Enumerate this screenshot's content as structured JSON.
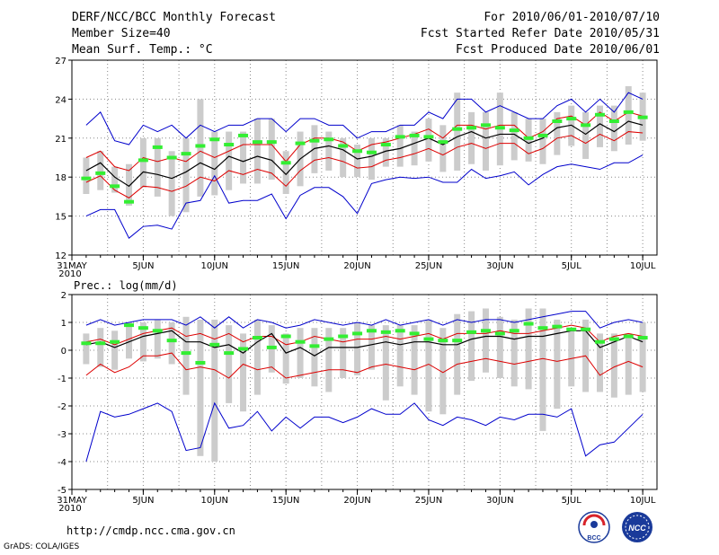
{
  "header": {
    "title": "DERF/NCC/BCC Monthly Forecast",
    "member_size": "Member Size=40",
    "variable": "Mean Surf. Temp.: °C",
    "period": "For 2010/06/01-2010/07/10",
    "started": "Fcst Started Refer Date 2010/05/31",
    "produced": "Fcst Produced Date 2010/06/01"
  },
  "footer": {
    "url": "http://cmdp.ncc.cma.gov.cn",
    "credit": "GrADS: COLA/IGES",
    "logo_left_text": "BCC",
    "logo_right_text": "NCC"
  },
  "colors": {
    "box": "#cccccc",
    "obs": "#33ee33",
    "mean": "#000000",
    "spread": "#dd0000",
    "range": "#0000cc",
    "grid": "#888888"
  },
  "chart_data": [
    {
      "type": "line",
      "title": "Mean Surf. Temp.: °C",
      "ylim": [
        12,
        27
      ],
      "yticks": [
        "12",
        "15",
        "18",
        "21",
        "24",
        "27"
      ],
      "xticks": [
        "31MAY",
        "5JUN",
        "10JUN",
        "15JUN",
        "20JUN",
        "25JUN",
        "30JUN",
        "5JUL",
        "10JUL"
      ],
      "xtick_days": [
        0,
        5,
        10,
        15,
        20,
        25,
        30,
        35,
        40
      ],
      "xlabel_year": "2010",
      "days": [
        1,
        2,
        3,
        4,
        5,
        6,
        7,
        8,
        9,
        10,
        11,
        12,
        13,
        14,
        15,
        16,
        17,
        18,
        19,
        20,
        21,
        22,
        23,
        24,
        25,
        26,
        27,
        28,
        29,
        30,
        31,
        32,
        33,
        34,
        35,
        36,
        37,
        38,
        39,
        40
      ],
      "series": [
        {
          "name": "ensemble_max",
          "values": [
            22.0,
            23.0,
            20.8,
            20.5,
            22.0,
            21.5,
            22.0,
            21.0,
            22.0,
            21.5,
            22.0,
            22.0,
            22.5,
            22.5,
            21.5,
            22.5,
            22.5,
            22.0,
            22.0,
            21.0,
            21.5,
            21.5,
            22.0,
            22.0,
            23.0,
            22.5,
            24.0,
            24.0,
            23.0,
            23.5,
            23.0,
            22.5,
            22.5,
            23.5,
            24.0,
            23.0,
            24.0,
            23.0,
            24.5,
            24.0
          ]
        },
        {
          "name": "upper_spread",
          "values": [
            19.5,
            20.0,
            18.8,
            18.5,
            19.5,
            19.2,
            19.5,
            19.2,
            20.0,
            19.5,
            20.0,
            20.5,
            20.5,
            20.5,
            19.2,
            20.5,
            21.0,
            21.0,
            20.7,
            20.0,
            20.5,
            20.7,
            21.0,
            21.3,
            21.7,
            21.0,
            22.0,
            22.0,
            21.7,
            22.0,
            22.0,
            21.0,
            21.5,
            22.5,
            22.7,
            22.0,
            23.0,
            22.3,
            23.0,
            22.7
          ]
        },
        {
          "name": "ensemble_mean",
          "values": [
            18.5,
            19.1,
            18.0,
            17.3,
            18.4,
            18.2,
            17.9,
            18.4,
            19.1,
            18.6,
            19.6,
            19.2,
            19.6,
            19.3,
            18.2,
            19.4,
            20.2,
            20.4,
            20.1,
            19.4,
            19.6,
            20.0,
            20.2,
            20.6,
            21.0,
            20.5,
            21.1,
            21.5,
            21.0,
            21.3,
            21.3,
            20.6,
            21.0,
            21.8,
            22.0,
            21.3,
            22.1,
            21.5,
            22.3,
            22.0
          ]
        },
        {
          "name": "lower_spread",
          "values": [
            17.6,
            18.1,
            17.0,
            16.4,
            17.3,
            17.2,
            16.9,
            17.3,
            18.0,
            17.7,
            18.5,
            18.2,
            18.6,
            18.3,
            17.3,
            18.5,
            19.3,
            19.5,
            19.2,
            18.7,
            18.8,
            19.3,
            19.5,
            19.8,
            20.2,
            19.7,
            20.3,
            20.6,
            20.2,
            20.6,
            20.6,
            19.8,
            20.2,
            21.0,
            21.2,
            20.6,
            21.3,
            20.8,
            21.5,
            21.4
          ]
        },
        {
          "name": "ensemble_min",
          "values": [
            15.0,
            15.5,
            15.5,
            13.3,
            14.2,
            14.3,
            14.0,
            16.0,
            16.2,
            18.1,
            16.0,
            16.2,
            16.2,
            16.7,
            14.8,
            16.6,
            17.2,
            17.2,
            16.5,
            15.2,
            17.5,
            17.8,
            18.0,
            17.9,
            18.0,
            17.6,
            17.6,
            18.6,
            17.9,
            18.1,
            18.4,
            17.4,
            18.2,
            18.8,
            19.0,
            18.8,
            18.6,
            19.1,
            19.1,
            19.7
          ]
        },
        {
          "name": "box_low",
          "values": [
            16.7,
            17.0,
            16.8,
            15.8,
            17.2,
            16.5,
            15.0,
            15.3,
            16.5,
            16.6,
            17.0,
            17.5,
            17.5,
            17.8,
            16.7,
            17.3,
            18.3,
            18.5,
            18.0,
            18.0,
            17.8,
            18.8,
            18.8,
            18.9,
            19.2,
            18.4,
            18.5,
            19.0,
            18.5,
            18.9,
            19.3,
            19.2,
            19.0,
            19.7,
            20.4,
            19.4,
            20.3,
            20.0,
            20.5,
            20.8
          ]
        },
        {
          "name": "box_high",
          "values": [
            19.5,
            20.0,
            18.8,
            19.0,
            21.0,
            21.0,
            20.0,
            21.0,
            24.0,
            21.5,
            21.5,
            21.5,
            22.5,
            22.5,
            20.0,
            21.5,
            22.0,
            21.5,
            21.0,
            20.5,
            21.0,
            21.0,
            22.0,
            21.5,
            22.5,
            22.0,
            24.5,
            23.0,
            23.0,
            24.5,
            23.0,
            22.5,
            22.5,
            23.0,
            23.5,
            23.0,
            23.5,
            23.5,
            25.0,
            24.5
          ]
        },
        {
          "name": "observed",
          "values": [
            17.9,
            18.3,
            17.3,
            16.1,
            19.3,
            20.3,
            19.5,
            19.8,
            20.4,
            20.9,
            20.5,
            21.2,
            20.7,
            20.7,
            19.1,
            20.6,
            20.8,
            20.9,
            20.4,
            20.0,
            19.9,
            20.5,
            21.1,
            21.2,
            21.1,
            20.7,
            21.7,
            21.8,
            22.0,
            21.8,
            21.6,
            21.0,
            21.2,
            22.3,
            22.5,
            22.0,
            22.8,
            22.3,
            23.0,
            22.6
          ]
        }
      ]
    },
    {
      "type": "line",
      "title": "Prec.: log(mm/d)",
      "ylim": [
        -5,
        2
      ],
      "yticks": [
        "-5",
        "-4",
        "-3",
        "-2",
        "-1",
        "0",
        "1",
        "2"
      ],
      "xticks": [
        "31MAY",
        "5JUN",
        "10JUN",
        "15JUN",
        "20JUN",
        "25JUN",
        "30JUN",
        "5JUL",
        "10JUL"
      ],
      "xtick_days": [
        0,
        5,
        10,
        15,
        20,
        25,
        30,
        35,
        40
      ],
      "xlabel_year": "2010",
      "days": [
        1,
        2,
        3,
        4,
        5,
        6,
        7,
        8,
        9,
        10,
        11,
        12,
        13,
        14,
        15,
        16,
        17,
        18,
        19,
        20,
        21,
        22,
        23,
        24,
        25,
        26,
        27,
        28,
        29,
        30,
        31,
        32,
        33,
        34,
        35,
        36,
        37,
        38,
        39,
        40
      ],
      "series": [
        {
          "name": "ensemble_max",
          "values": [
            0.9,
            1.1,
            0.9,
            1.0,
            1.1,
            1.1,
            1.1,
            0.9,
            1.2,
            0.8,
            1.2,
            0.8,
            1.1,
            1.0,
            0.8,
            0.9,
            1.1,
            1.0,
            0.9,
            1.0,
            0.9,
            1.1,
            0.9,
            1.0,
            1.1,
            0.9,
            1.1,
            1.0,
            1.1,
            1.1,
            1.0,
            1.1,
            1.2,
            1.3,
            1.4,
            1.4,
            0.8,
            1.0,
            1.1,
            1.0
          ]
        },
        {
          "name": "upper_spread",
          "values": [
            0.3,
            0.4,
            0.2,
            0.4,
            0.6,
            0.7,
            0.8,
            0.5,
            0.6,
            0.4,
            0.6,
            0.3,
            0.5,
            0.5,
            0.2,
            0.3,
            0.5,
            0.4,
            0.3,
            0.4,
            0.4,
            0.5,
            0.4,
            0.5,
            0.6,
            0.4,
            0.6,
            0.6,
            0.6,
            0.7,
            0.6,
            0.6,
            0.7,
            0.8,
            0.9,
            0.8,
            0.3,
            0.5,
            0.6,
            0.5
          ]
        },
        {
          "name": "ensemble_mean",
          "values": [
            0.2,
            0.3,
            0.1,
            0.3,
            0.5,
            0.6,
            0.7,
            0.3,
            0.3,
            0.1,
            0.2,
            -0.1,
            0.3,
            0.6,
            -0.1,
            0.1,
            -0.2,
            0.1,
            0.1,
            0.1,
            0.2,
            0.3,
            0.2,
            0.3,
            0.3,
            0.2,
            0.2,
            0.4,
            0.5,
            0.5,
            0.4,
            0.5,
            0.5,
            0.6,
            0.7,
            0.7,
            0.1,
            0.3,
            0.5,
            0.3
          ]
        },
        {
          "name": "lower_spread",
          "values": [
            -0.9,
            -0.5,
            -0.8,
            -0.6,
            -0.2,
            -0.2,
            -0.1,
            -0.7,
            -0.6,
            -0.7,
            -1.0,
            -0.5,
            -0.7,
            -0.6,
            -1.0,
            -0.9,
            -0.8,
            -0.7,
            -0.7,
            -0.8,
            -0.6,
            -0.5,
            -0.6,
            -0.7,
            -0.5,
            -0.8,
            -0.5,
            -0.4,
            -0.3,
            -0.4,
            -0.5,
            -0.4,
            -0.3,
            -0.4,
            -0.3,
            -0.2,
            -0.9,
            -0.6,
            -0.4,
            -0.6
          ]
        },
        {
          "name": "ensemble_min",
          "values": [
            -4.0,
            -2.2,
            -2.4,
            -2.3,
            -2.1,
            -1.9,
            -2.2,
            -3.6,
            -3.5,
            -1.9,
            -2.8,
            -2.7,
            -2.2,
            -2.9,
            -2.4,
            -2.8,
            -2.4,
            -2.4,
            -2.6,
            -2.4,
            -2.1,
            -2.3,
            -2.3,
            -1.9,
            -2.5,
            -2.7,
            -2.4,
            -2.5,
            -2.7,
            -2.4,
            -2.5,
            -2.3,
            -2.3,
            -2.4,
            -2.1,
            -3.8,
            -3.4,
            -3.3,
            -2.8,
            -2.3
          ]
        },
        {
          "name": "box_low",
          "values": [
            -0.5,
            -0.6,
            -0.7,
            -0.3,
            -0.4,
            -0.3,
            -0.5,
            -1.6,
            -3.8,
            -4.0,
            -1.9,
            -2.2,
            -1.6,
            -0.8,
            -1.2,
            -1.0,
            -1.3,
            -1.5,
            -1.0,
            -0.9,
            -0.7,
            -1.8,
            -1.3,
            -1.6,
            -2.2,
            -2.3,
            -1.6,
            -1.1,
            -0.8,
            -1.0,
            -1.3,
            -1.4,
            -2.9,
            -2.1,
            -1.3,
            -1.5,
            -1.5,
            -1.7,
            -1.6,
            -1.5
          ]
        },
        {
          "name": "box_high",
          "values": [
            0.6,
            0.8,
            0.7,
            1.0,
            1.0,
            1.1,
            1.0,
            1.2,
            1.1,
            1.1,
            0.9,
            0.6,
            1.1,
            0.9,
            0.6,
            0.8,
            0.8,
            0.8,
            0.8,
            1.0,
            0.9,
            0.9,
            0.9,
            0.9,
            1.1,
            0.8,
            1.3,
            1.4,
            1.5,
            1.2,
            1.1,
            1.5,
            1.5,
            1.1,
            0.8,
            1.1,
            0.6,
            0.6,
            0.6,
            1.0
          ]
        },
        {
          "name": "observed",
          "values": [
            0.25,
            0.25,
            0.3,
            0.9,
            0.8,
            0.7,
            0.35,
            -0.1,
            -0.45,
            0.2,
            -0.1,
            0.05,
            0.45,
            0.1,
            0.5,
            0.3,
            0.15,
            0.4,
            0.5,
            0.6,
            0.7,
            0.65,
            0.7,
            0.6,
            0.4,
            0.35,
            0.35,
            0.65,
            0.7,
            0.6,
            0.7,
            0.95,
            0.8,
            0.85,
            0.75,
            0.75,
            0.3,
            0.4,
            0.5,
            0.45
          ]
        }
      ]
    }
  ]
}
